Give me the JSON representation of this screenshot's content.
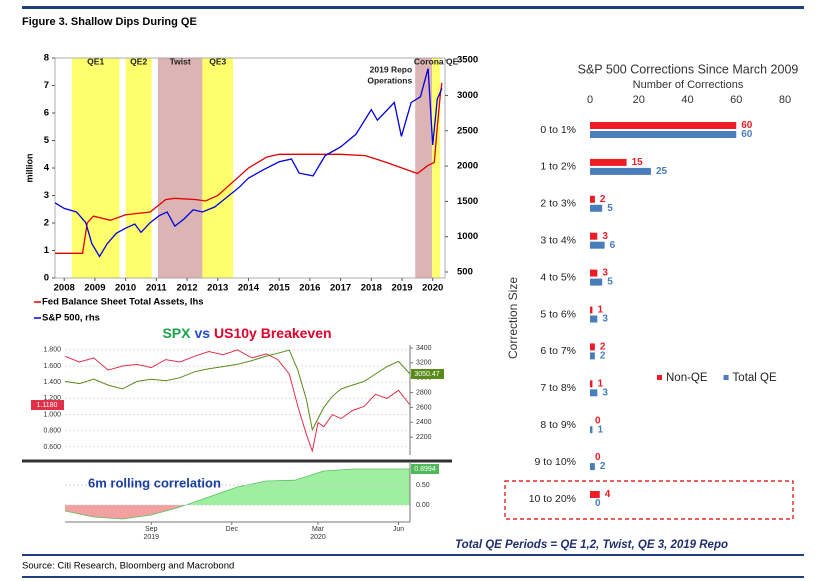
{
  "title": "Figure 3. Shallow Dips During QE",
  "source": "Source: Citi Research, Bloomberg and Macrobond",
  "footnote": "Total QE Periods = QE 1,2, Twist, QE 3, 2019 Repo",
  "chart_data": [
    {
      "type": "line",
      "y_label": "million",
      "xlim": [
        2007.7,
        2020.4
      ],
      "xticks": [
        2008,
        2009,
        2010,
        2011,
        2012,
        2013,
        2014,
        2015,
        2016,
        2017,
        2018,
        2019,
        2020
      ],
      "ylim": [
        0,
        8
      ],
      "yticks": [
        0,
        1,
        2,
        3,
        4,
        5,
        6,
        7,
        8
      ],
      "y2lim": [
        415,
        3530
      ],
      "y2ticks": [
        500,
        1000,
        1500,
        2000,
        2500,
        3000,
        3500
      ],
      "bands": [
        {
          "label": "QE1",
          "start": 2008.25,
          "end": 2009.8,
          "color": "#ffff6e"
        },
        {
          "label": "QE2",
          "start": 2010.0,
          "end": 2010.85,
          "color": "#ffff6e"
        },
        {
          "label": "Twist",
          "start": 2011.05,
          "end": 2012.5,
          "color": "#ddb4b4"
        },
        {
          "label": "QE3",
          "start": 2012.5,
          "end": 2013.5,
          "color": "#ffff6e"
        },
        {
          "label": [
            "2019 Repo",
            "Operations"
          ],
          "start": 2019.43,
          "end": 2019.98,
          "color": "#ddb4b4"
        },
        {
          "label": "Corona QE",
          "start": 2019.98,
          "end": 2020.24,
          "color": "#ffff6e"
        }
      ],
      "legend": "bottom-left",
      "series": [
        {
          "name": "Fed Balance Sheet Total Assets, lhs",
          "color": "#e00000",
          "x": [
            2007.7,
            2008.6,
            2008.75,
            2008.95,
            2009.5,
            2010.0,
            2010.8,
            2011.3,
            2011.6,
            2012.3,
            2012.6,
            2013.0,
            2013.5,
            2014.0,
            2014.6,
            2015.0,
            2016.0,
            2017.0,
            2017.8,
            2018.5,
            2019.0,
            2019.5,
            2019.85,
            2020.05,
            2020.15,
            2020.25,
            2020.3
          ],
          "values": [
            0.9,
            0.9,
            2.0,
            2.25,
            2.1,
            2.3,
            2.4,
            2.85,
            2.9,
            2.85,
            2.8,
            3.0,
            3.5,
            4.0,
            4.4,
            4.5,
            4.5,
            4.5,
            4.45,
            4.2,
            4.0,
            3.8,
            4.1,
            4.2,
            5.5,
            6.7,
            7.1
          ]
        },
        {
          "name": "S&P 500, rhs",
          "color": "#0000e0",
          "axis": "y2",
          "x": [
            2007.7,
            2008.0,
            2008.4,
            2008.7,
            2008.9,
            2009.15,
            2009.4,
            2009.7,
            2010.0,
            2010.3,
            2010.5,
            2010.8,
            2011.1,
            2011.35,
            2011.6,
            2011.9,
            2012.2,
            2012.5,
            2012.9,
            2013.3,
            2013.7,
            2014.0,
            2014.5,
            2015.0,
            2015.4,
            2015.65,
            2016.1,
            2016.5,
            2017.0,
            2017.5,
            2018.0,
            2018.2,
            2018.75,
            2018.98,
            2019.3,
            2019.6,
            2019.85,
            2020.0,
            2020.15,
            2020.3
          ],
          "values": [
            1480,
            1400,
            1350,
            1200,
            900,
            720,
            900,
            1050,
            1120,
            1180,
            1060,
            1200,
            1300,
            1350,
            1150,
            1250,
            1380,
            1350,
            1420,
            1560,
            1700,
            1830,
            1950,
            2060,
            2100,
            1900,
            1860,
            2150,
            2270,
            2450,
            2800,
            2650,
            2900,
            2420,
            2900,
            2980,
            3380,
            2300,
            2950,
            3100
          ]
        }
      ]
    },
    {
      "type": "line",
      "title": [
        "SPX",
        "vs",
        "US10y Breakeven"
      ],
      "title_colors": [
        "#1aa34a",
        "#1f4fd0",
        "#e0002a"
      ],
      "grid": true,
      "xlim": [
        0,
        12
      ],
      "ylim": [
        0.5,
        1.86
      ],
      "yticks": [
        {
          "value": 0.6,
          "label": "0.600"
        },
        {
          "value": 0.8,
          "label": "0.800"
        },
        {
          "value": 1.0,
          "label": "1.000"
        },
        {
          "value": 1.2,
          "label": "1.200"
        },
        {
          "value": 1.4,
          "label": "1.400"
        },
        {
          "value": 1.6,
          "label": "1.600"
        },
        {
          "value": 1.8,
          "label": "1.800"
        }
      ],
      "y2lim": [
        1960,
        3440
      ],
      "y2ticks": [
        2200,
        2400,
        2600,
        2800,
        3000,
        3200,
        3400
      ],
      "series": [
        {
          "name": "US10y Breakeven",
          "color": "#e0304a",
          "last_label": "1.1180",
          "x": [
            0,
            0.5,
            1,
            1.5,
            2,
            2.5,
            3,
            3.5,
            4,
            4.5,
            5,
            5.5,
            6,
            6.5,
            7,
            7.4,
            7.8,
            8.1,
            8.4,
            8.6,
            8.8,
            9,
            9.3,
            9.6,
            10,
            10.4,
            10.8,
            11.2,
            11.6,
            12
          ],
          "values": [
            1.72,
            1.65,
            1.7,
            1.55,
            1.6,
            1.62,
            1.58,
            1.68,
            1.65,
            1.72,
            1.78,
            1.74,
            1.8,
            1.7,
            1.75,
            1.68,
            1.5,
            1.1,
            0.75,
            0.55,
            0.9,
            0.85,
            1.0,
            0.95,
            1.05,
            1.1,
            1.25,
            1.2,
            1.3,
            1.118
          ]
        },
        {
          "name": "SPX",
          "color": "#5a8a1a",
          "axis": "y2",
          "last_label": "3050.47",
          "x": [
            0,
            0.5,
            1,
            1.5,
            2,
            2.5,
            3,
            3.5,
            4,
            4.5,
            5,
            5.5,
            6,
            6.5,
            7,
            7.4,
            7.8,
            8.1,
            8.4,
            8.6,
            8.8,
            9,
            9.3,
            9.6,
            10,
            10.4,
            10.8,
            11.2,
            11.6,
            12
          ],
          "values": [
            2950,
            2920,
            2980,
            2900,
            2850,
            2950,
            2980,
            2960,
            3000,
            3080,
            3120,
            3150,
            3180,
            3230,
            3290,
            3330,
            3370,
            3100,
            2700,
            2300,
            2450,
            2600,
            2750,
            2850,
            2900,
            2950,
            3050,
            3150,
            3220,
            3050.47
          ]
        }
      ]
    },
    {
      "type": "area",
      "title": "6m rolling correlation",
      "xlim": [
        0,
        12
      ],
      "xticks": [
        {
          "value": 3,
          "label": "Sep"
        },
        {
          "value": 5.8,
          "label": "Dec"
        },
        {
          "value": 8.8,
          "label": "Mar"
        },
        {
          "value": 11.6,
          "label": "Jun"
        }
      ],
      "year_labels": [
        {
          "value": 3,
          "label": "2019"
        },
        {
          "value": 8.8,
          "label": "2020"
        }
      ],
      "ylim": [
        -0.425,
        1.05
      ],
      "yticks": [
        {
          "value": 0.5,
          "label": "0.50"
        },
        {
          "value": 0,
          "label": "0.00"
        }
      ],
      "color": "#9ef0a0",
      "negative_color": "#f2a0a0",
      "last_label": "0.8994",
      "x": [
        0,
        1,
        2,
        3,
        4,
        5,
        6,
        7,
        8,
        9,
        10,
        11,
        12
      ],
      "values": [
        -0.15,
        -0.3,
        -0.35,
        -0.25,
        -0.05,
        0.2,
        0.45,
        0.6,
        0.62,
        0.85,
        0.9,
        0.9,
        0.8994
      ]
    },
    {
      "type": "bar",
      "orientation": "horizontal",
      "title": "S&P 500 Corrections Since March 2009",
      "x_label": "Number of Corrections",
      "y_label": "Correction Size",
      "xlim": [
        0,
        80
      ],
      "xticks": [
        0,
        20,
        40,
        60,
        80
      ],
      "legend": "center-right",
      "categories": [
        "0 to 1%",
        "1 to 2%",
        "2 to 3%",
        "3 to 4%",
        "4 to 5%",
        "5 to 6%",
        "6 to 7%",
        "7 to 8%",
        "8 to 9%",
        "9 to 10%",
        "10 to 20%"
      ],
      "series": [
        {
          "name": "Non-QE",
          "color": "#ee1c25",
          "values": [
            60,
            15,
            2,
            3,
            3,
            1,
            2,
            1,
            0,
            0,
            4
          ]
        },
        {
          "name": "Total QE",
          "color": "#4a7ebb",
          "values": [
            60,
            25,
            5,
            6,
            5,
            3,
            2,
            3,
            1,
            2,
            0
          ]
        }
      ]
    }
  ]
}
